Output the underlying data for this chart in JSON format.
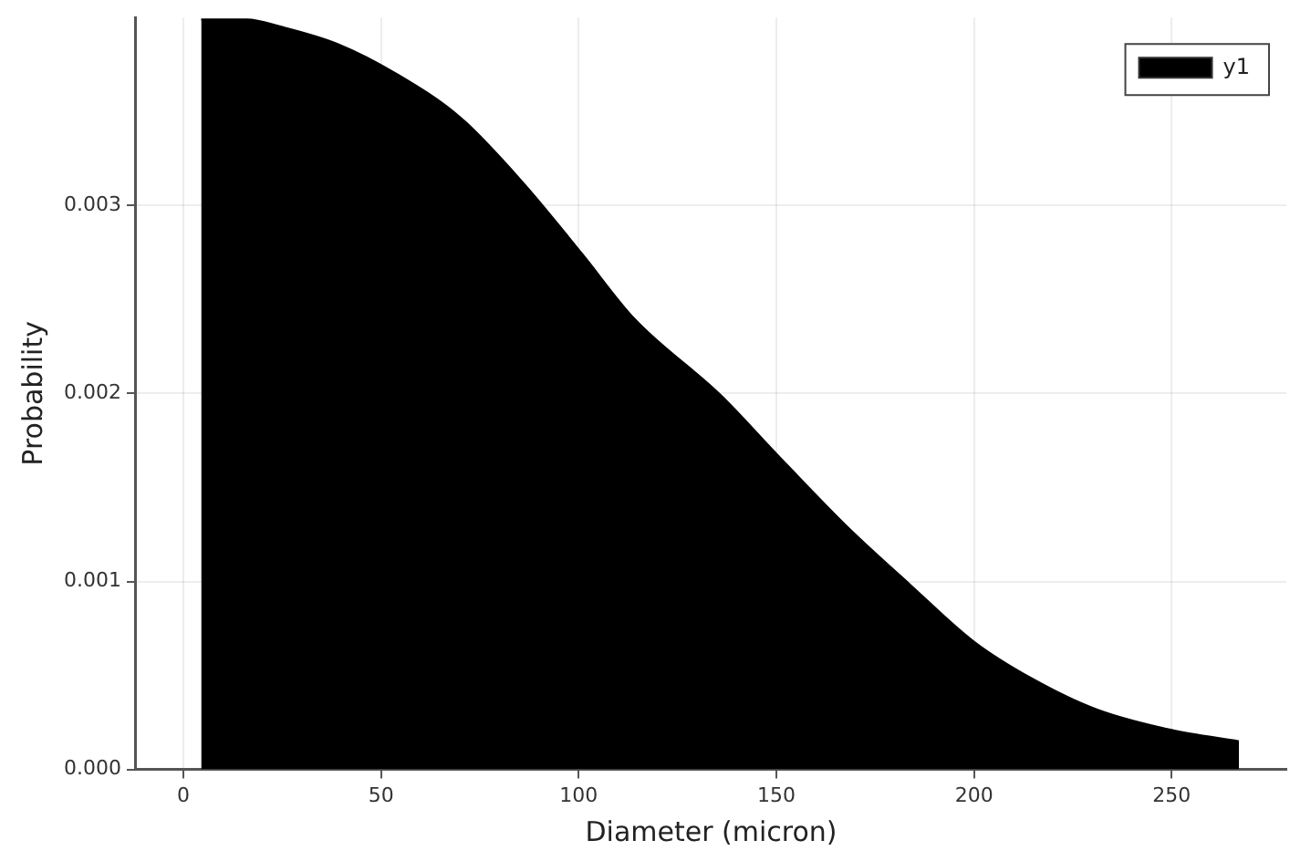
{
  "chart_data": {
    "type": "area",
    "xlabel": "Diameter (micron)",
    "ylabel": "Probability",
    "series": [
      {
        "name": "y1",
        "color": "#000000",
        "x": [
          4.5,
          10,
          16,
          25,
          39,
          54,
          70,
          86,
          101,
          114,
          136,
          150,
          168,
          184,
          200,
          215,
          231,
          250,
          267
        ],
        "values": [
          0.00399,
          0.00399,
          0.00399,
          0.00395,
          0.00386,
          0.0037,
          0.00347,
          0.00312,
          0.00274,
          0.0024,
          0.00199,
          0.00168,
          0.00129,
          0.00098,
          0.00068,
          0.00048,
          0.00032,
          0.00021,
          0.00015
        ]
      }
    ],
    "xlim": [
      -12,
      279
    ],
    "ylim": [
      0,
      0.004
    ],
    "xticks": [
      0,
      50,
      100,
      150,
      200,
      250
    ],
    "yticks": [
      {
        "value": 0,
        "label": "0.000"
      },
      {
        "value": 0.001,
        "label": "0.001"
      },
      {
        "value": 0.002,
        "label": "0.002"
      },
      {
        "value": 0.003,
        "label": "0.003"
      }
    ],
    "grid": true,
    "legend": "top right",
    "marker": "none"
  }
}
